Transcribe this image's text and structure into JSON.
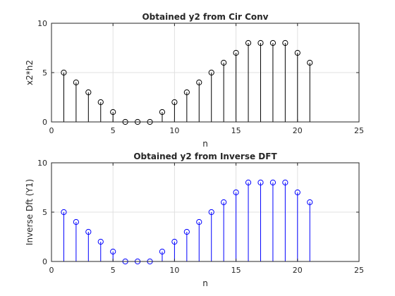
{
  "chart_data": [
    {
      "type": "stem",
      "title": "Obtained y2 from Cir Conv",
      "xlabel": "n",
      "ylabel": "x2*h2",
      "xlim": [
        0,
        25
      ],
      "ylim": [
        0,
        10
      ],
      "xticks": [
        0,
        5,
        10,
        15,
        20,
        25
      ],
      "yticks": [
        0,
        5,
        10
      ],
      "grid": true,
      "color": "#000000",
      "series": [
        {
          "x": [
            1,
            2,
            3,
            4,
            5,
            6,
            7,
            8,
            9,
            10,
            11,
            12,
            13,
            14,
            15,
            16,
            17,
            18,
            19,
            20,
            21
          ],
          "values": [
            5,
            4,
            3,
            2,
            1,
            0,
            0,
            0,
            1,
            2,
            3,
            4,
            5,
            6,
            7,
            8,
            8,
            8,
            8,
            7,
            6
          ]
        }
      ]
    },
    {
      "type": "stem",
      "title": "Obtained y2 from Inverse DFT",
      "xlabel": "n",
      "ylabel": "Inverse Dft (Y1)",
      "xlim": [
        0,
        25
      ],
      "ylim": [
        0,
        10
      ],
      "xticks": [
        0,
        5,
        10,
        15,
        20,
        25
      ],
      "yticks": [
        0,
        5,
        10
      ],
      "grid": true,
      "color": "#0000ff",
      "series": [
        {
          "x": [
            1,
            2,
            3,
            4,
            5,
            6,
            7,
            8,
            9,
            10,
            11,
            12,
            13,
            14,
            15,
            16,
            17,
            18,
            19,
            20,
            21
          ],
          "values": [
            5,
            4,
            3,
            2,
            1,
            0,
            0,
            0,
            1,
            2,
            3,
            4,
            5,
            6,
            7,
            8,
            8,
            8,
            8,
            7,
            6
          ]
        }
      ]
    }
  ]
}
